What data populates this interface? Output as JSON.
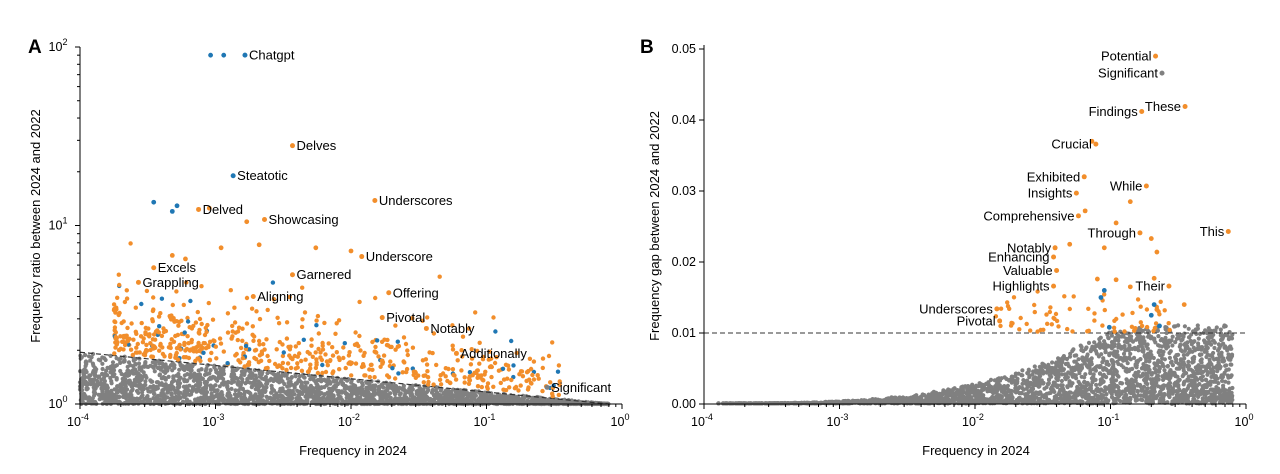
{
  "chart_data": [
    {
      "type": "scatter",
      "panel": "A",
      "xlabel": "Frequency in 2024",
      "ylabel": "Frequency ratio between 2024 and 2022",
      "xscale": "log",
      "yscale": "log",
      "xlim": [
        0.0001,
        1
      ],
      "ylim": [
        1,
        100
      ],
      "x_ticks": [
        {
          "base": "10",
          "exp": "-4"
        },
        {
          "base": "10",
          "exp": "-3"
        },
        {
          "base": "10",
          "exp": "-2"
        },
        {
          "base": "10",
          "exp": "-1"
        },
        {
          "base": "10",
          "exp": "0"
        }
      ],
      "y_ticks": [
        {
          "base": "10",
          "exp": "0"
        },
        {
          "base": "10",
          "exp": "1"
        },
        {
          "base": "10",
          "exp": "2"
        }
      ],
      "colors": {
        "background_points": "#808080",
        "highlighted": "#f28e2b",
        "blue": "#1f77b4",
        "threshold": "#333333"
      },
      "threshold_line": {
        "style": "dashed",
        "points": [
          [
            0.0001,
            1.95
          ],
          [
            0.8,
            1.0
          ]
        ]
      },
      "labeled_points": [
        {
          "word": "Chatgpt",
          "x": 0.00165,
          "y": 90,
          "color": "blue"
        },
        {
          "word": "Delves",
          "x": 0.0037,
          "y": 28,
          "color": "orange"
        },
        {
          "word": "Steatotic",
          "x": 0.00135,
          "y": 19,
          "color": "blue"
        },
        {
          "word": "Underscores",
          "x": 0.015,
          "y": 13.8,
          "color": "orange"
        },
        {
          "word": "Delved",
          "x": 0.00075,
          "y": 12.3,
          "color": "orange"
        },
        {
          "word": "Showcasing",
          "x": 0.0023,
          "y": 10.8,
          "color": "orange"
        },
        {
          "word": "Underscore",
          "x": 0.012,
          "y": 6.7,
          "color": "orange"
        },
        {
          "word": "Excels",
          "x": 0.00035,
          "y": 5.8,
          "color": "orange"
        },
        {
          "word": "Garnered",
          "x": 0.0037,
          "y": 5.3,
          "color": "orange"
        },
        {
          "word": "Grappling",
          "x": 0.00027,
          "y": 4.8,
          "color": "orange"
        },
        {
          "word": "Offering",
          "x": 0.019,
          "y": 4.2,
          "color": "orange"
        },
        {
          "word": "Aligning",
          "x": 0.0019,
          "y": 4.0,
          "color": "orange"
        },
        {
          "word": "Pivotal",
          "x": 0.017,
          "y": 3.05,
          "color": "orange"
        },
        {
          "word": "Notably",
          "x": 0.036,
          "y": 2.65,
          "color": "orange"
        },
        {
          "word": "Additionally",
          "x": 0.06,
          "y": 1.92,
          "color": "orange"
        },
        {
          "word": "Significant",
          "x": 0.28,
          "y": 1.24,
          "color": "gray"
        }
      ],
      "unlabeled_points": [
        {
          "x": 0.00092,
          "y": 90,
          "color": "blue"
        },
        {
          "x": 0.00115,
          "y": 90,
          "color": "blue"
        },
        {
          "x": 0.00035,
          "y": 13.5,
          "color": "blue"
        },
        {
          "x": 0.00048,
          "y": 12.0,
          "color": "blue"
        },
        {
          "x": 0.00052,
          "y": 12.9,
          "color": "blue"
        },
        {
          "x": 0.0009,
          "y": 12.5,
          "color": "orange"
        },
        {
          "x": 0.0017,
          "y": 10.5,
          "color": "orange"
        },
        {
          "x": 0.0011,
          "y": 7.5,
          "color": "orange"
        },
        {
          "x": 0.0021,
          "y": 7.8,
          "color": "orange"
        },
        {
          "x": 0.0055,
          "y": 7.5,
          "color": "orange"
        },
        {
          "x": 0.01,
          "y": 7.2,
          "color": "orange"
        },
        {
          "x": 0.00048,
          "y": 6.8,
          "color": "orange"
        },
        {
          "x": 0.0006,
          "y": 6.5,
          "color": "orange"
        }
      ]
    },
    {
      "type": "scatter",
      "panel": "B",
      "xlabel": "Frequency in 2024",
      "ylabel": "Frequency gap between 2024 and 2022",
      "xscale": "log",
      "yscale": "linear",
      "xlim": [
        0.0001,
        1
      ],
      "ylim": [
        0,
        0.05
      ],
      "x_ticks": [
        {
          "base": "10",
          "exp": "-4"
        },
        {
          "base": "10",
          "exp": "-3"
        },
        {
          "base": "10",
          "exp": "-2"
        },
        {
          "base": "10",
          "exp": "-1"
        },
        {
          "base": "10",
          "exp": "0"
        }
      ],
      "y_ticks": [
        "0.00",
        "0.01",
        "0.02",
        "0.03",
        "0.04",
        "0.05"
      ],
      "y_tick_values": [
        0,
        0.01,
        0.02,
        0.03,
        0.04,
        0.05
      ],
      "threshold_line": {
        "style": "dashed",
        "y": 0.01
      },
      "labeled_points": [
        {
          "word": "Potential",
          "x": 0.215,
          "y": 0.049,
          "color": "orange"
        },
        {
          "word": "Significant",
          "x": 0.24,
          "y": 0.0466,
          "color": "gray"
        },
        {
          "word": "These",
          "x": 0.355,
          "y": 0.0419,
          "color": "orange"
        },
        {
          "word": "Findings",
          "x": 0.17,
          "y": 0.0412,
          "color": "orange"
        },
        {
          "word": "Crucial",
          "x": 0.078,
          "y": 0.0366,
          "color": "orange"
        },
        {
          "word": "Exhibited",
          "x": 0.064,
          "y": 0.032,
          "color": "orange"
        },
        {
          "word": "While",
          "x": 0.184,
          "y": 0.0307,
          "color": "orange"
        },
        {
          "word": "Insights",
          "x": 0.056,
          "y": 0.0297,
          "color": "orange"
        },
        {
          "word": "Comprehensive",
          "x": 0.058,
          "y": 0.0265,
          "color": "orange"
        },
        {
          "word": "This",
          "x": 0.74,
          "y": 0.0243,
          "color": "orange"
        },
        {
          "word": "Through",
          "x": 0.165,
          "y": 0.0241,
          "color": "orange"
        },
        {
          "word": "Notably",
          "x": 0.039,
          "y": 0.022,
          "color": "orange"
        },
        {
          "word": "Enhancing",
          "x": 0.038,
          "y": 0.0207,
          "color": "orange"
        },
        {
          "word": "Valuable",
          "x": 0.04,
          "y": 0.0188,
          "color": "orange"
        },
        {
          "word": "Their",
          "x": 0.27,
          "y": 0.0166,
          "color": "orange"
        },
        {
          "word": "Highlights",
          "x": 0.038,
          "y": 0.0166,
          "color": "orange"
        },
        {
          "word": "Underscores",
          "x": 0.0145,
          "y": 0.0134,
          "color": "orange"
        },
        {
          "word": "Pivotal",
          "x": 0.0152,
          "y": 0.0117,
          "color": "orange"
        }
      ],
      "unlabeled_points": [
        {
          "x": 0.073,
          "y": 0.037,
          "color": "orange"
        },
        {
          "x": 0.14,
          "y": 0.0285,
          "color": "orange"
        },
        {
          "x": 0.065,
          "y": 0.0272,
          "color": "orange"
        },
        {
          "x": 0.11,
          "y": 0.0255,
          "color": "orange"
        },
        {
          "x": 0.2,
          "y": 0.0233,
          "color": "orange"
        },
        {
          "x": 0.05,
          "y": 0.0225,
          "color": "orange"
        },
        {
          "x": 0.09,
          "y": 0.022,
          "color": "orange"
        },
        {
          "x": 0.22,
          "y": 0.0214,
          "color": "orange"
        },
        {
          "x": 0.08,
          "y": 0.0176,
          "color": "orange"
        },
        {
          "x": 0.09,
          "y": 0.016,
          "color": "blue"
        },
        {
          "x": 0.11,
          "y": 0.0175,
          "color": "orange"
        },
        {
          "x": 0.14,
          "y": 0.0165,
          "color": "orange"
        },
        {
          "x": 0.085,
          "y": 0.015,
          "color": "blue"
        },
        {
          "x": 0.21,
          "y": 0.0177,
          "color": "orange"
        },
        {
          "x": 0.35,
          "y": 0.014,
          "color": "orange"
        },
        {
          "x": 0.21,
          "y": 0.014,
          "color": "blue"
        },
        {
          "x": 0.2,
          "y": 0.0125,
          "color": "blue"
        },
        {
          "x": 0.23,
          "y": 0.011,
          "color": "blue"
        },
        {
          "x": 0.22,
          "y": 0.0133,
          "color": "orange"
        },
        {
          "x": 0.098,
          "y": 0.0108,
          "color": "blue"
        }
      ]
    }
  ]
}
